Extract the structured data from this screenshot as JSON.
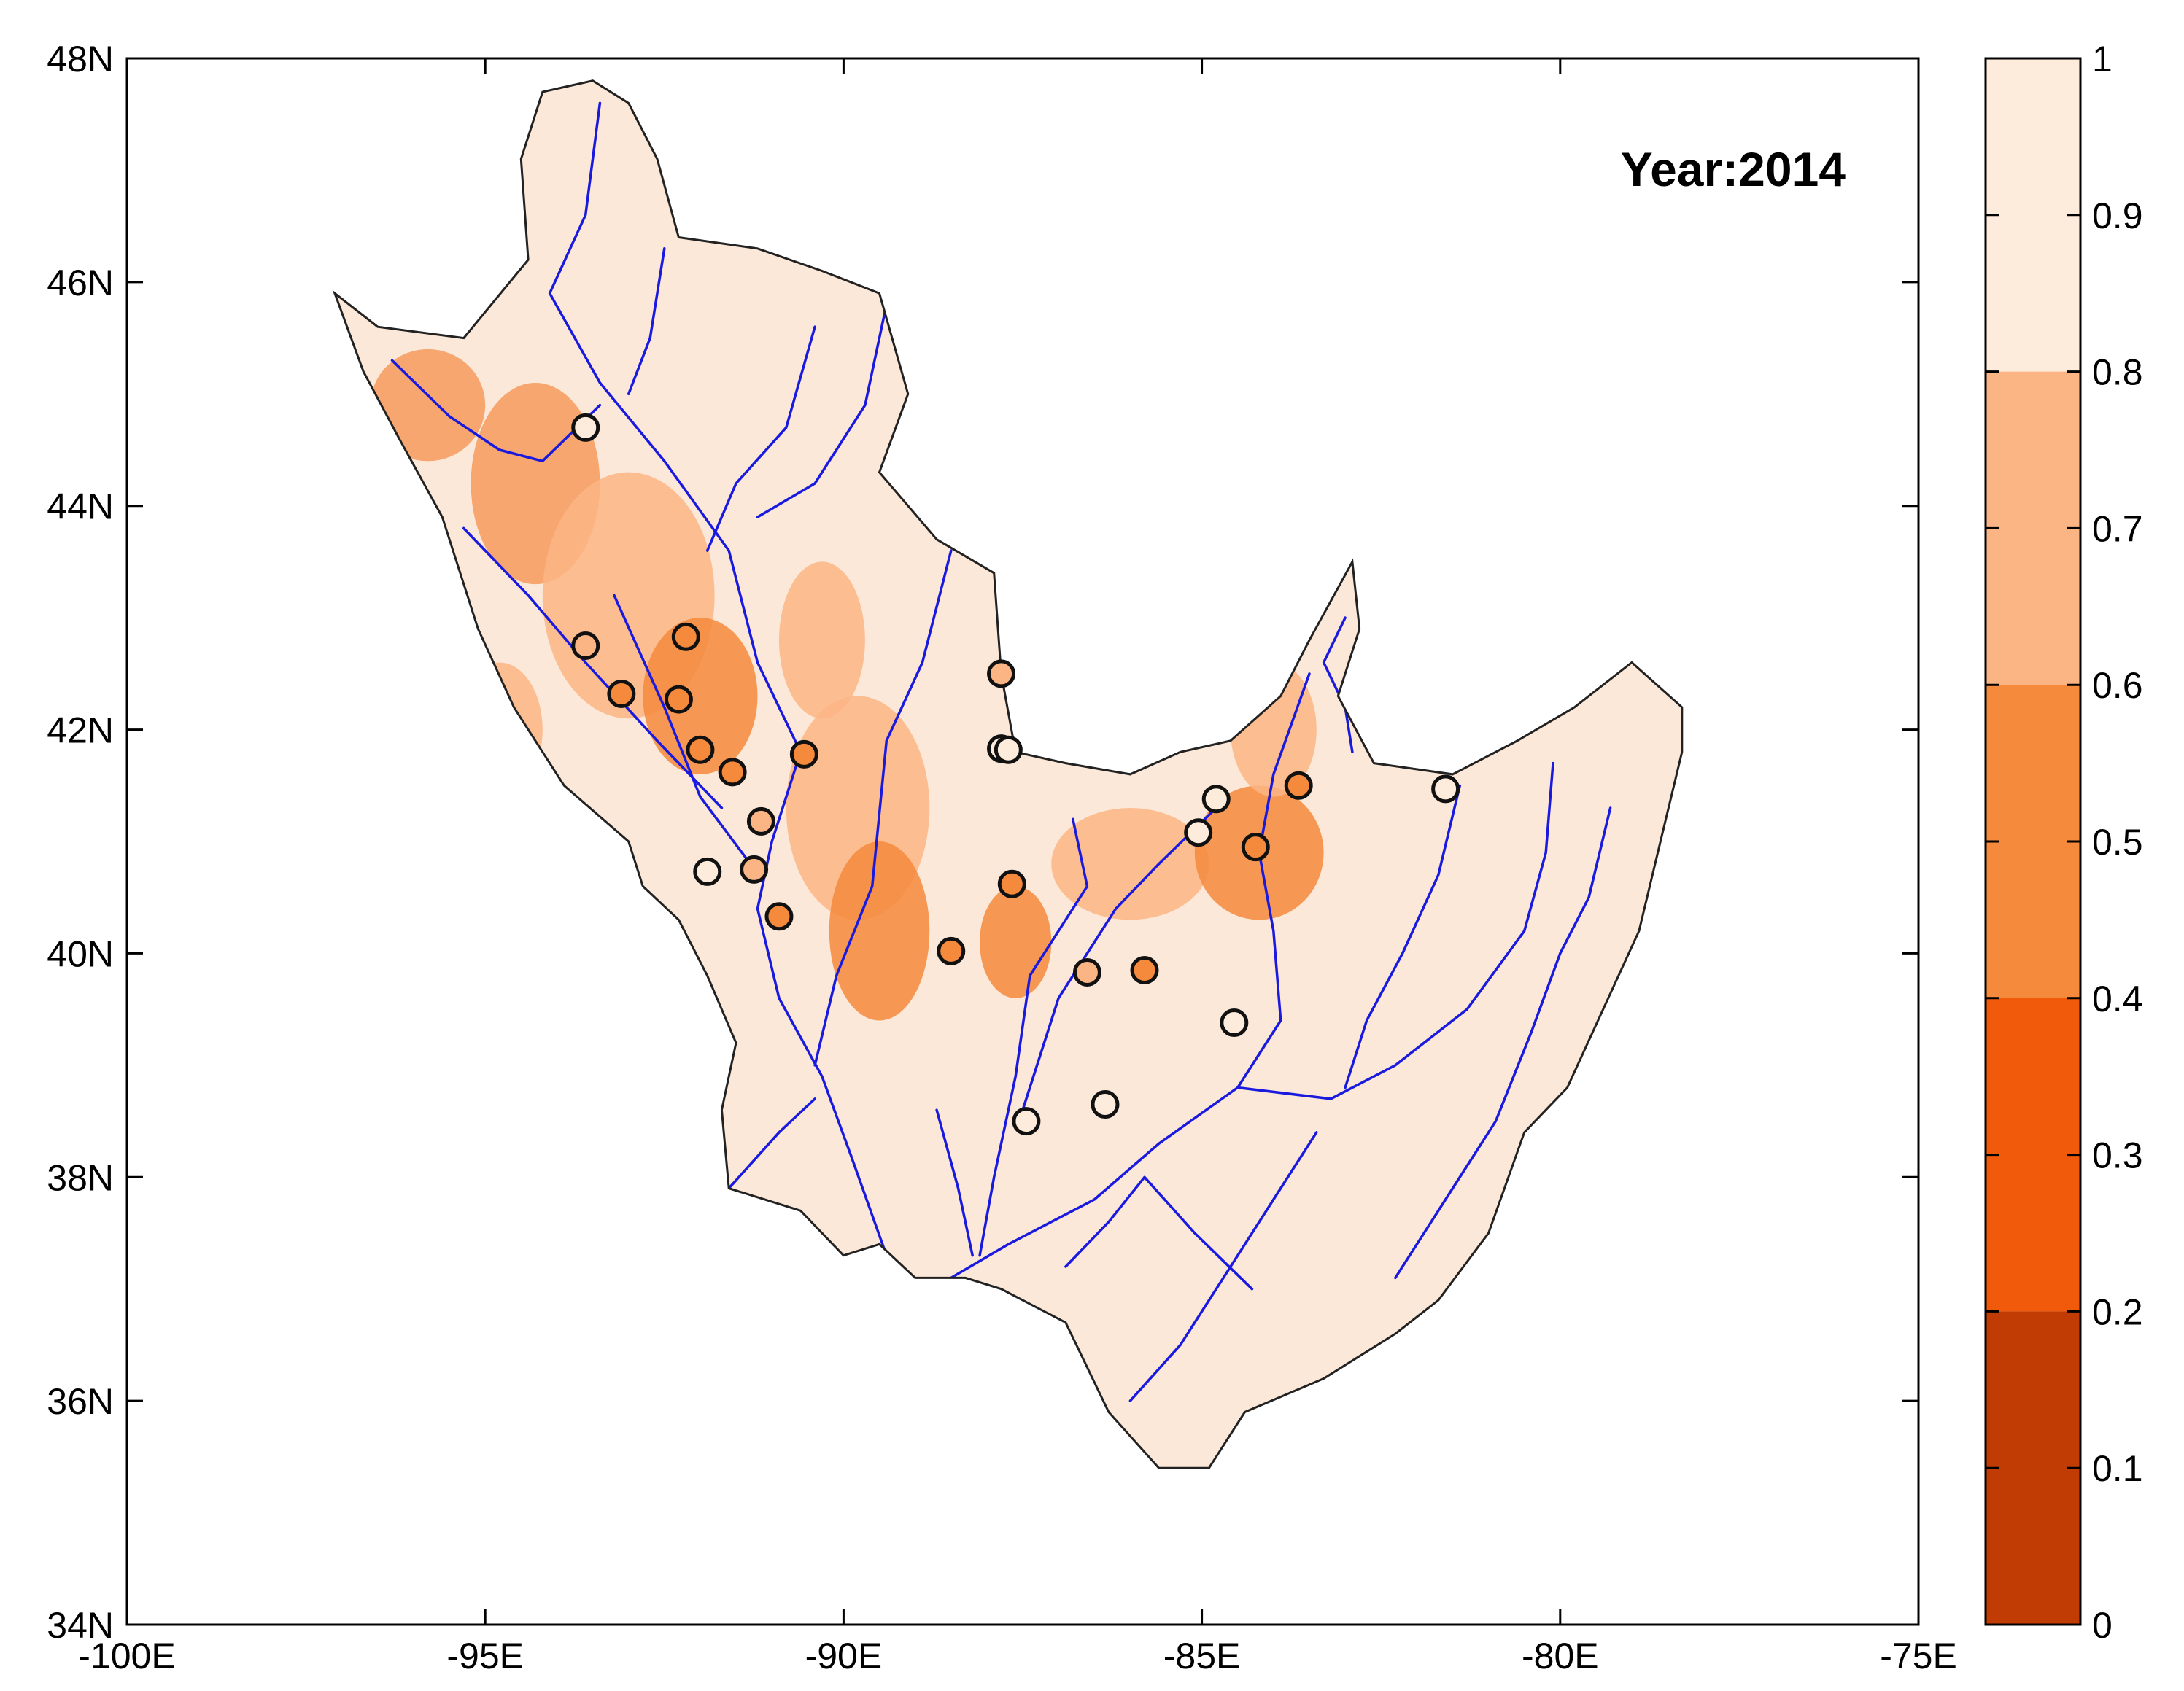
{
  "map": {
    "annotation": "Year:2014",
    "x_ticks": [
      "-100E",
      "-95E",
      "-90E",
      "-85E",
      "-80E",
      "-75E"
    ],
    "x_tick_values": [
      -100,
      -95,
      -90,
      -85,
      -80,
      -75
    ],
    "y_ticks": [
      "48N",
      "46N",
      "44N",
      "42N",
      "40N",
      "38N",
      "36N",
      "34N"
    ],
    "y_tick_values": [
      48,
      46,
      44,
      42,
      40,
      38,
      36,
      34
    ],
    "xlim": [
      -100,
      -75
    ],
    "ylim": [
      34,
      48
    ],
    "region_outline_lonlat": [
      [
        -97.1,
        45.9
      ],
      [
        -96.5,
        45.6
      ],
      [
        -95.3,
        45.5
      ],
      [
        -94.4,
        46.2
      ],
      [
        -94.5,
        47.1
      ],
      [
        -94.2,
        47.7
      ],
      [
        -93.5,
        47.8
      ],
      [
        -93.0,
        47.6
      ],
      [
        -92.6,
        47.1
      ],
      [
        -92.3,
        46.4
      ],
      [
        -91.2,
        46.3
      ],
      [
        -90.3,
        46.1
      ],
      [
        -89.5,
        45.9
      ],
      [
        -89.1,
        45.0
      ],
      [
        -89.5,
        44.3
      ],
      [
        -88.7,
        43.7
      ],
      [
        -87.9,
        43.4
      ],
      [
        -87.8,
        42.5
      ],
      [
        -87.6,
        41.8
      ],
      [
        -86.9,
        41.7
      ],
      [
        -86.0,
        41.6
      ],
      [
        -85.3,
        41.8
      ],
      [
        -84.6,
        41.9
      ],
      [
        -83.9,
        42.3
      ],
      [
        -83.5,
        42.8
      ],
      [
        -82.9,
        43.5
      ],
      [
        -82.8,
        42.9
      ],
      [
        -83.1,
        42.3
      ],
      [
        -82.6,
        41.7
      ],
      [
        -81.5,
        41.6
      ],
      [
        -80.6,
        41.9
      ],
      [
        -79.8,
        42.2
      ],
      [
        -79.0,
        42.6
      ],
      [
        -78.3,
        42.2
      ],
      [
        -78.3,
        41.8
      ],
      [
        -78.6,
        41.0
      ],
      [
        -78.9,
        40.2
      ],
      [
        -79.4,
        39.5
      ],
      [
        -79.9,
        38.8
      ],
      [
        -80.5,
        38.4
      ],
      [
        -81.0,
        37.5
      ],
      [
        -81.7,
        36.9
      ],
      [
        -82.3,
        36.6
      ],
      [
        -83.3,
        36.2
      ],
      [
        -84.4,
        35.9
      ],
      [
        -84.9,
        35.4
      ],
      [
        -85.6,
        35.4
      ],
      [
        -86.3,
        35.9
      ],
      [
        -86.9,
        36.7
      ],
      [
        -87.8,
        37.0
      ],
      [
        -88.3,
        37.1
      ],
      [
        -89.0,
        37.1
      ],
      [
        -89.5,
        37.4
      ],
      [
        -90.0,
        37.3
      ],
      [
        -90.6,
        37.7
      ],
      [
        -91.6,
        37.9
      ],
      [
        -91.7,
        38.6
      ],
      [
        -91.5,
        39.2
      ],
      [
        -91.9,
        39.8
      ],
      [
        -92.3,
        40.3
      ],
      [
        -92.8,
        40.6
      ],
      [
        -93.0,
        41.0
      ],
      [
        -93.9,
        41.5
      ],
      [
        -94.6,
        42.2
      ],
      [
        -95.1,
        42.9
      ],
      [
        -95.6,
        43.9
      ],
      [
        -96.2,
        44.6
      ],
      [
        -96.7,
        45.2
      ],
      [
        -97.1,
        45.9
      ]
    ],
    "river_lines_lonlat": [
      [
        [
          -93.4,
          47.6
        ],
        [
          -93.6,
          46.6
        ],
        [
          -94.1,
          45.9
        ],
        [
          -93.4,
          45.1
        ],
        [
          -92.5,
          44.4
        ],
        [
          -91.6,
          43.6
        ],
        [
          -91.2,
          42.6
        ],
        [
          -90.6,
          41.8
        ],
        [
          -91.0,
          41.0
        ],
        [
          -91.2,
          40.4
        ],
        [
          -90.9,
          39.6
        ],
        [
          -90.3,
          38.9
        ],
        [
          -89.9,
          38.2
        ],
        [
          -89.4,
          37.3
        ]
      ],
      [
        [
          -96.3,
          45.3
        ],
        [
          -95.5,
          44.8
        ],
        [
          -94.8,
          44.5
        ],
        [
          -94.2,
          44.4
        ],
        [
          -93.4,
          44.9
        ]
      ],
      [
        [
          -95.3,
          43.8
        ],
        [
          -94.4,
          43.2
        ],
        [
          -93.6,
          42.6
        ],
        [
          -92.6,
          41.9
        ],
        [
          -91.7,
          41.3
        ]
      ],
      [
        [
          -93.2,
          43.2
        ],
        [
          -92.5,
          42.2
        ],
        [
          -92.0,
          41.4
        ],
        [
          -91.3,
          40.8
        ]
      ],
      [
        [
          -89.4,
          45.8
        ],
        [
          -89.7,
          44.9
        ],
        [
          -90.4,
          44.2
        ],
        [
          -91.2,
          43.9
        ]
      ],
      [
        [
          -88.5,
          43.6
        ],
        [
          -88.9,
          42.6
        ],
        [
          -89.4,
          41.9
        ],
        [
          -89.6,
          40.6
        ],
        [
          -90.1,
          39.8
        ],
        [
          -90.4,
          39.0
        ]
      ],
      [
        [
          -86.8,
          41.2
        ],
        [
          -86.6,
          40.6
        ],
        [
          -87.4,
          39.8
        ],
        [
          -87.6,
          38.9
        ],
        [
          -87.9,
          38.0
        ],
        [
          -88.1,
          37.3
        ]
      ],
      [
        [
          -84.8,
          41.3
        ],
        [
          -85.6,
          40.8
        ],
        [
          -86.2,
          40.4
        ],
        [
          -87.0,
          39.6
        ],
        [
          -87.5,
          38.6
        ]
      ],
      [
        [
          -83.5,
          42.5
        ],
        [
          -84.0,
          41.6
        ],
        [
          -84.2,
          40.9
        ],
        [
          -84.0,
          40.2
        ],
        [
          -83.9,
          39.4
        ],
        [
          -84.5,
          38.8
        ],
        [
          -85.6,
          38.3
        ],
        [
          -86.5,
          37.8
        ],
        [
          -87.7,
          37.4
        ],
        [
          -88.5,
          37.1
        ]
      ],
      [
        [
          -80.1,
          41.7
        ],
        [
          -80.2,
          40.9
        ],
        [
          -80.5,
          40.2
        ],
        [
          -81.3,
          39.5
        ],
        [
          -82.3,
          39.0
        ],
        [
          -83.2,
          38.7
        ],
        [
          -84.5,
          38.8
        ]
      ],
      [
        [
          -79.3,
          41.3
        ],
        [
          -79.6,
          40.5
        ],
        [
          -80.0,
          40.0
        ],
        [
          -80.4,
          39.3
        ],
        [
          -80.9,
          38.5
        ],
        [
          -81.6,
          37.8
        ],
        [
          -82.3,
          37.1
        ]
      ],
      [
        [
          -84.3,
          37.0
        ],
        [
          -85.1,
          37.5
        ],
        [
          -85.8,
          38.0
        ],
        [
          -86.3,
          37.6
        ],
        [
          -86.9,
          37.2
        ]
      ],
      [
        [
          -81.4,
          41.5
        ],
        [
          -81.7,
          40.7
        ],
        [
          -82.2,
          40.0
        ],
        [
          -82.7,
          39.4
        ],
        [
          -83.0,
          38.8
        ]
      ],
      [
        [
          -83.0,
          43.0
        ],
        [
          -83.3,
          42.6
        ],
        [
          -83.0,
          42.2
        ],
        [
          -82.9,
          41.8
        ]
      ],
      [
        [
          -90.4,
          45.6
        ],
        [
          -90.8,
          44.7
        ],
        [
          -91.5,
          44.2
        ],
        [
          -91.9,
          43.6
        ]
      ],
      [
        [
          -92.5,
          46.3
        ],
        [
          -92.7,
          45.5
        ],
        [
          -93.0,
          45.0
        ]
      ],
      [
        [
          -91.6,
          37.9
        ],
        [
          -90.9,
          38.4
        ],
        [
          -90.4,
          38.7
        ]
      ],
      [
        [
          -88.7,
          38.6
        ],
        [
          -88.4,
          37.9
        ],
        [
          -88.2,
          37.3
        ]
      ],
      [
        [
          -86.0,
          36.0
        ],
        [
          -85.3,
          36.5
        ],
        [
          -84.7,
          37.1
        ],
        [
          -84.0,
          37.8
        ],
        [
          -83.4,
          38.4
        ]
      ]
    ],
    "shading_blobs_lonlat": [
      {
        "lon": -94.3,
        "lat": 44.2,
        "rx": 0.9,
        "ry": 0.9,
        "color": "#f59a5c"
      },
      {
        "lon": -93.0,
        "lat": 43.2,
        "rx": 1.2,
        "ry": 1.1,
        "color": "#fbb585"
      },
      {
        "lon": -92.0,
        "lat": 42.3,
        "rx": 0.8,
        "ry": 0.7,
        "color": "#f58a3c"
      },
      {
        "lon": -89.8,
        "lat": 41.3,
        "rx": 1.0,
        "ry": 1.0,
        "color": "#fbb585"
      },
      {
        "lon": -89.5,
        "lat": 40.2,
        "rx": 0.7,
        "ry": 0.8,
        "color": "#f58a3c"
      },
      {
        "lon": -87.6,
        "lat": 40.1,
        "rx": 0.5,
        "ry": 0.5,
        "color": "#f58a3c"
      },
      {
        "lon": -86.0,
        "lat": 40.8,
        "rx": 1.1,
        "ry": 0.5,
        "color": "#fbb585"
      },
      {
        "lon": -84.2,
        "lat": 40.9,
        "rx": 0.9,
        "ry": 0.6,
        "color": "#f58a3c"
      },
      {
        "lon": -84.0,
        "lat": 42.0,
        "rx": 0.6,
        "ry": 0.6,
        "color": "#fbb585"
      },
      {
        "lon": -95.8,
        "lat": 44.9,
        "rx": 0.8,
        "ry": 0.5,
        "color": "#f59a5c"
      },
      {
        "lon": -94.8,
        "lat": 42.0,
        "rx": 0.6,
        "ry": 0.6,
        "color": "#fbb585"
      },
      {
        "lon": -90.3,
        "lat": 42.8,
        "rx": 0.6,
        "ry": 0.7,
        "color": "#fbb585"
      }
    ],
    "stations": [
      {
        "lon": -93.6,
        "lat": 44.7,
        "value": 0.85
      },
      {
        "lon": -93.6,
        "lat": 42.75,
        "value": 0.75
      },
      {
        "lon": -93.1,
        "lat": 42.32,
        "value": 0.45
      },
      {
        "lon": -92.2,
        "lat": 42.83,
        "value": 0.55
      },
      {
        "lon": -92.3,
        "lat": 42.27,
        "value": 0.55
      },
      {
        "lon": -92.0,
        "lat": 41.82,
        "value": 0.55
      },
      {
        "lon": -91.55,
        "lat": 41.62,
        "value": 0.55
      },
      {
        "lon": -90.55,
        "lat": 41.78,
        "value": 0.55
      },
      {
        "lon": -91.15,
        "lat": 41.18,
        "value": 0.75
      },
      {
        "lon": -91.9,
        "lat": 40.73,
        "value": 0.85
      },
      {
        "lon": -91.25,
        "lat": 40.75,
        "value": 0.75
      },
      {
        "lon": -90.9,
        "lat": 40.33,
        "value": 0.55
      },
      {
        "lon": -88.5,
        "lat": 40.02,
        "value": 0.55
      },
      {
        "lon": -87.8,
        "lat": 42.5,
        "value": 0.75
      },
      {
        "lon": -87.8,
        "lat": 41.83,
        "value": 0.9
      },
      {
        "lon": -87.7,
        "lat": 41.82,
        "value": 0.85
      },
      {
        "lon": -87.65,
        "lat": 40.62,
        "value": 0.55
      },
      {
        "lon": -86.6,
        "lat": 39.83,
        "value": 0.75
      },
      {
        "lon": -85.8,
        "lat": 39.85,
        "value": 0.55
      },
      {
        "lon": -87.45,
        "lat": 38.5,
        "value": 0.85
      },
      {
        "lon": -86.35,
        "lat": 38.65,
        "value": 0.85
      },
      {
        "lon": -84.55,
        "lat": 39.38,
        "value": 0.85
      },
      {
        "lon": -84.8,
        "lat": 41.38,
        "value": 0.85
      },
      {
        "lon": -85.05,
        "lat": 41.08,
        "value": 0.85
      },
      {
        "lon": -84.25,
        "lat": 40.95,
        "value": 0.55
      },
      {
        "lon": -83.65,
        "lat": 41.5,
        "value": 0.55
      },
      {
        "lon": -81.6,
        "lat": 41.47,
        "value": 0.85
      }
    ]
  },
  "colorbar": {
    "tick_labels": [
      "1",
      "0.9",
      "0.8",
      "0.7",
      "0.6",
      "0.5",
      "0.4",
      "0.3",
      "0.2",
      "0.1",
      "0"
    ],
    "tick_values": [
      1,
      0.9,
      0.8,
      0.7,
      0.6,
      0.5,
      0.4,
      0.3,
      0.2,
      0.1,
      0
    ],
    "bands": [
      {
        "from": 0.8,
        "to": 1.0,
        "color": "#fdebdc"
      },
      {
        "from": 0.6,
        "to": 0.8,
        "color": "#fbb585"
      },
      {
        "from": 0.4,
        "to": 0.6,
        "color": "#f58a3c"
      },
      {
        "from": 0.2,
        "to": 0.4,
        "color": "#f15a0b"
      },
      {
        "from": 0.0,
        "to": 0.2,
        "color": "#c13c04"
      }
    ]
  },
  "colors": {
    "land": "#fbe8d8",
    "river": "#1a1adf",
    "outline": "#222222",
    "axis": "#000000"
  }
}
